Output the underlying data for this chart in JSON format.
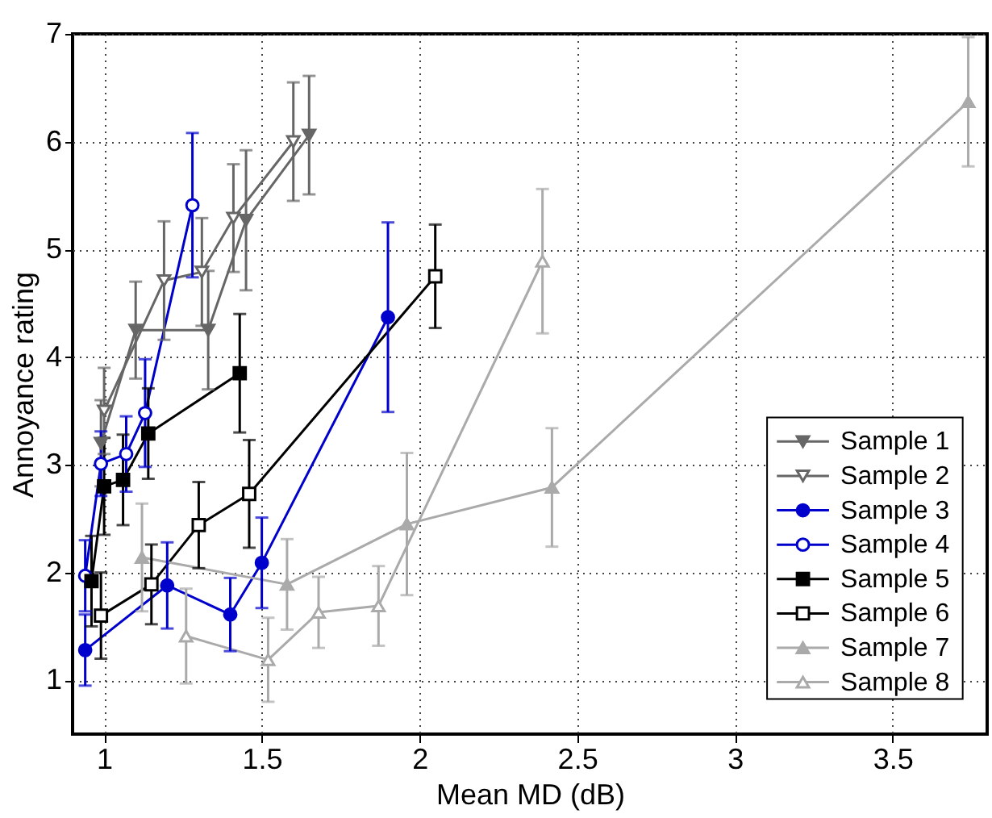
{
  "chart_data": {
    "type": "line",
    "xlabel": "Mean MD (dB)",
    "ylabel": "Annoyance rating",
    "xlim": [
      0.9,
      3.8
    ],
    "xticks": [
      1,
      1.5,
      2,
      2.5,
      3,
      3.5
    ],
    "ylim": [
      0.5,
      7
    ],
    "yticks": [
      1,
      2,
      3,
      4,
      5,
      6,
      7
    ],
    "grid": true,
    "legend": "bottom right",
    "line_style": "solid",
    "series": [
      {
        "name": "Sample 1",
        "color": "#666666",
        "marker": "triangle-down",
        "x": [
          0.99,
          1.1,
          1.33,
          1.45,
          1.65
        ],
        "values": [
          3.2,
          4.25,
          4.25,
          5.27,
          6.06
        ],
        "errors": [
          0.4,
          0.45,
          0.55,
          0.65,
          0.55
        ]
      },
      {
        "name": "Sample 2",
        "color": "#666666",
        "marker": "triangle-down-open",
        "x": [
          1.0,
          1.19,
          1.31,
          1.41,
          1.6
        ],
        "values": [
          3.5,
          4.71,
          4.79,
          5.29,
          6.0
        ],
        "errors": [
          0.4,
          0.55,
          0.5,
          0.5,
          0.55
        ]
      },
      {
        "name": "Sample 3",
        "color": "#0000cc",
        "marker": "circle",
        "x": [
          0.94,
          1.2,
          1.4,
          1.5,
          1.9
        ],
        "values": [
          1.28,
          1.88,
          1.61,
          2.09,
          4.37
        ],
        "errors": [
          0.33,
          0.4,
          0.34,
          0.42,
          0.88
        ]
      },
      {
        "name": "Sample 4",
        "color": "#0000cc",
        "marker": "circle-open",
        "x": [
          0.94,
          0.99,
          1.07,
          1.13,
          1.28
        ],
        "values": [
          1.97,
          3.01,
          3.1,
          3.48,
          5.41
        ],
        "errors": [
          0.33,
          0.3,
          0.35,
          0.5,
          0.67
        ]
      },
      {
        "name": "Sample 5",
        "color": "#000000",
        "marker": "square",
        "x": [
          0.96,
          1.0,
          1.06,
          1.14,
          1.43
        ],
        "values": [
          1.92,
          2.8,
          2.86,
          3.29,
          3.85
        ],
        "errors": [
          0.42,
          0.45,
          0.42,
          0.42,
          0.55
        ]
      },
      {
        "name": "Sample 6",
        "color": "#000000",
        "marker": "square-open",
        "x": [
          0.99,
          1.15,
          1.3,
          1.46,
          2.05
        ],
        "values": [
          1.6,
          1.89,
          2.44,
          2.73,
          4.75
        ],
        "errors": [
          0.4,
          0.37,
          0.4,
          0.5,
          0.48
        ]
      },
      {
        "name": "Sample 7",
        "color": "#aaaaaa",
        "marker": "triangle",
        "x": [
          1.12,
          1.58,
          1.96,
          2.42,
          3.74
        ],
        "values": [
          2.14,
          1.89,
          2.45,
          2.79,
          6.37
        ],
        "errors": [
          0.5,
          0.42,
          0.66,
          0.55,
          0.6
        ]
      },
      {
        "name": "Sample 8",
        "color": "#aaaaaa",
        "marker": "triangle-open",
        "x": [
          1.26,
          1.52,
          1.68,
          1.87,
          2.39
        ],
        "values": [
          1.41,
          1.19,
          1.63,
          1.69,
          4.89
        ],
        "errors": [
          0.44,
          0.39,
          0.33,
          0.37,
          0.67
        ]
      }
    ]
  }
}
